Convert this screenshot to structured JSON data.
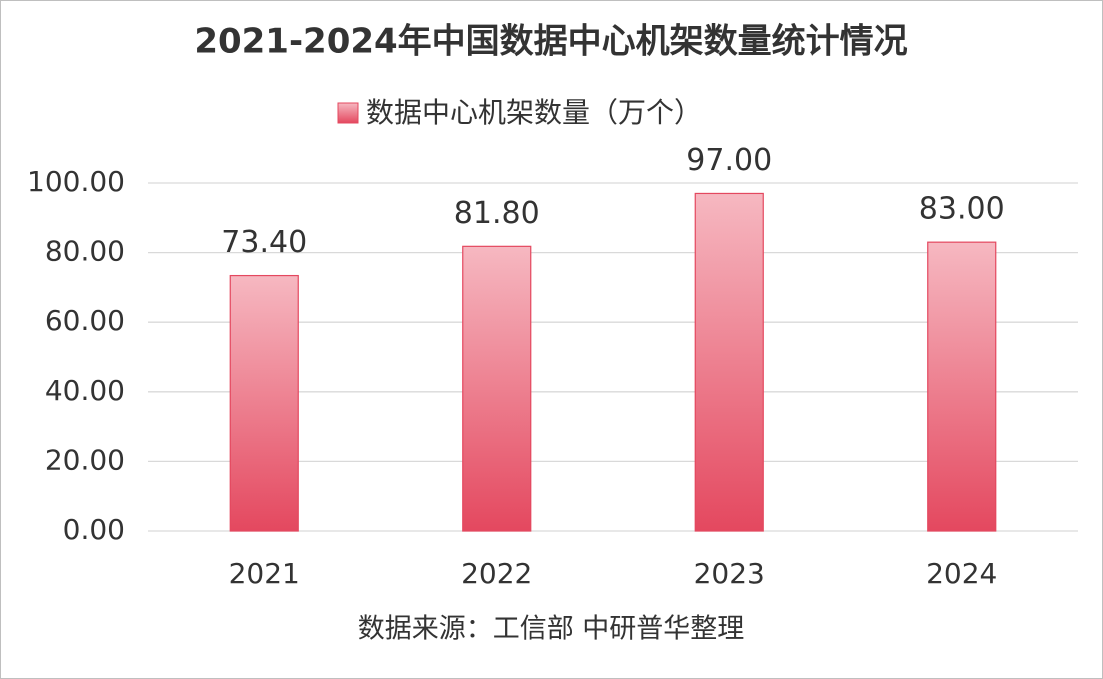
{
  "chart_data": {
    "type": "bar",
    "title": "2021-2024年中国数据中心机架数量统计情况",
    "categories": [
      "2021",
      "2022",
      "2023",
      "2024"
    ],
    "series": [
      {
        "name": "数据中心机架数量（万个）",
        "color": "#e4485f",
        "values": [
          73.4,
          81.8,
          97,
          83
        ],
        "value_labels": [
          "73.40",
          "81.80",
          "97.00",
          "83.00"
        ]
      }
    ],
    "ylim": [
      0,
      100
    ],
    "yticks": [
      {
        "value": 0,
        "label": "0.00"
      },
      {
        "value": 20,
        "label": "20.00"
      },
      {
        "value": 40,
        "label": "40.00"
      },
      {
        "value": 60,
        "label": "60.00"
      },
      {
        "value": 80,
        "label": "80.00"
      },
      {
        "value": 100,
        "label": "100.00"
      }
    ],
    "grid": true,
    "legend": "top",
    "source": "数据来源：工信部 中研普华整理"
  }
}
